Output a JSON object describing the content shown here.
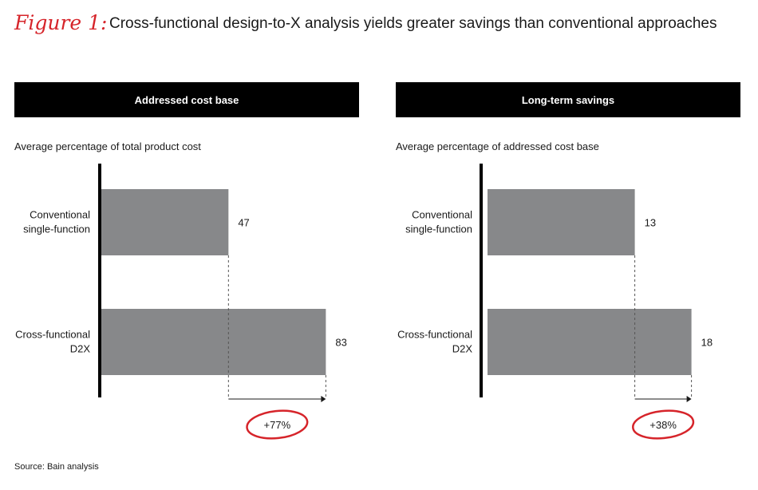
{
  "figure": {
    "label": "Figure 1:",
    "title": "Cross-functional design-to-X analysis yields greater savings than conventional approaches",
    "source": "Source: Bain analysis"
  },
  "colors": {
    "bar": "#87888a",
    "header_bg": "#000000",
    "accent": "#d6242a",
    "axis": "#000000"
  },
  "chart_data": [
    {
      "type": "bar",
      "orientation": "horizontal",
      "title": "Addressed cost base",
      "subtitle": "Average percentage of total product cost",
      "categories": [
        "Conventional single-function",
        "Cross-functional D2X"
      ],
      "category_lines": [
        [
          "Conventional",
          "single-function"
        ],
        [
          "Cross-functional",
          "D2X"
        ]
      ],
      "values": [
        47,
        83
      ],
      "data_labels": [
        "47",
        "83"
      ],
      "xlim": [
        0,
        100
      ],
      "annotation": "+77%",
      "grid": false
    },
    {
      "type": "bar",
      "orientation": "horizontal",
      "title": "Long-term savings",
      "subtitle": "Average percentage of addressed cost base",
      "categories": [
        "Conventional single-function",
        "Cross-functional D2X"
      ],
      "category_lines": [
        [
          "Conventional",
          "single-function"
        ],
        [
          "Cross-functional",
          "D2X"
        ]
      ],
      "values": [
        13,
        18
      ],
      "data_labels": [
        "13",
        "18"
      ],
      "xlim": [
        0,
        20
      ],
      "annotation": "+38%",
      "grid": false
    }
  ]
}
